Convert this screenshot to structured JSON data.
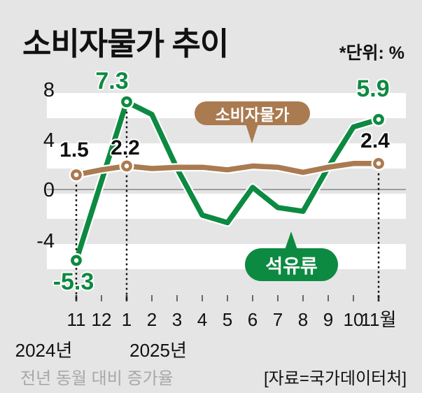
{
  "title": "소비자물가 추이",
  "unit_note": "*단위: %",
  "colors": {
    "background": "#e5e5e5",
    "band": "#ffffff",
    "zero_line": "#9e9e9e",
    "cpi_brown": "#aa7a50",
    "petroleum_green": "#0d8a41",
    "text_black": "#111111",
    "muted_gray": "#a8a8a8"
  },
  "chart_data": {
    "type": "line",
    "title": "소비자물가 추이",
    "unit": "%",
    "x": [
      "11",
      "12",
      "1",
      "2",
      "3",
      "4",
      "5",
      "6",
      "7",
      "8",
      "9",
      "10",
      "11월"
    ],
    "year_labels": [
      "2024년",
      "2025년"
    ],
    "series": [
      {
        "name": "석유류",
        "color": "#0d8a41",
        "values": [
          -5.3,
          1.0,
          7.3,
          6.3,
          2.0,
          -1.7,
          -2.3,
          0.5,
          -1.1,
          -1.4,
          2.1,
          5.3,
          5.9
        ],
        "marker_indices": [
          0,
          2,
          12
        ],
        "labeled_points": [
          {
            "index": 0,
            "label": "-5.3"
          },
          {
            "index": 2,
            "label": "7.3"
          },
          {
            "index": 12,
            "label": "5.9"
          }
        ]
      },
      {
        "name": "소비자물가",
        "color": "#aa7a50",
        "values": [
          1.5,
          1.9,
          2.2,
          2.0,
          2.1,
          2.1,
          1.9,
          2.2,
          2.1,
          1.7,
          2.1,
          2.4,
          2.4
        ],
        "marker_indices": [
          0,
          2,
          12
        ],
        "labeled_points": [
          {
            "index": 0,
            "label": "1.5"
          },
          {
            "index": 2,
            "label": "2.2"
          },
          {
            "index": 12,
            "label": "2.4"
          }
        ]
      }
    ],
    "y_ticks": [
      "8",
      "4",
      "0",
      "-4"
    ],
    "y_tick_values": [
      8,
      4,
      0,
      -4
    ],
    "ylim": [
      -7,
      9
    ],
    "grid": "alternating white horizontal bands every 2 units, thin gray zero line",
    "legend": "speech-bubble labels inside plot",
    "dotted_guides": [
      {
        "index": 0,
        "from_value": 1.5
      },
      {
        "index": 2,
        "from_value": 7.3
      },
      {
        "index": 12,
        "from_value": 2.4
      }
    ]
  },
  "value_labels": {
    "petrol_nov24": "-5.3",
    "petrol_jan25": "7.3",
    "petrol_nov25": "5.9",
    "cpi_nov24": "1.5",
    "cpi_jan25": "2.2",
    "cpi_nov25": "2.4"
  },
  "bubbles": {
    "consumer": "소비자물가",
    "oil": "석유류"
  },
  "axis": {
    "y_ticks": [
      "8",
      "4",
      "0",
      "-4"
    ],
    "years": [
      "2024년",
      "2025년"
    ]
  },
  "footer": {
    "note": "전년 동월 대비 증가율",
    "source": "[자료=국가데이터처]"
  }
}
